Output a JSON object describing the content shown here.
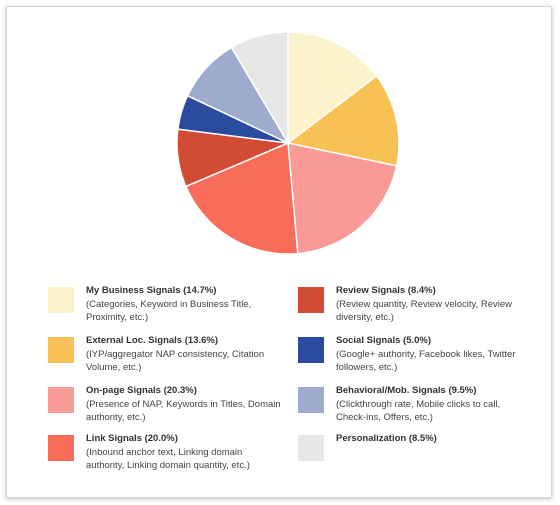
{
  "chart_data": {
    "type": "pie",
    "title": "",
    "slices": [
      {
        "name": "My Business Signals",
        "value": 14.7,
        "color": "#fcf2cc",
        "label": "My Business Signals (14.7%)",
        "desc": "(Categories, Keyword in Business Title, Proximity, etc.)"
      },
      {
        "name": "External Loc. Signals",
        "value": 13.6,
        "color": "#f8c153",
        "label": "External Loc. Signals (13.6%)",
        "desc": "(IYP/aggregator NAP consistency, Citation Volume, etc.)"
      },
      {
        "name": "On-page Signals",
        "value": 20.3,
        "color": "#f99a97",
        "label": "On-page Signals (20.3%)",
        "desc": "(Presence of NAP, Keywords in Titles, Domain authority, etc.)"
      },
      {
        "name": "Link Signals",
        "value": 20.0,
        "color": "#f86c59",
        "label": "Link Signals (20.0%)",
        "desc": "(Inbound anchor text, Linking domain authority, Linking domain quantity, etc.)"
      },
      {
        "name": "Review Signals",
        "value": 8.4,
        "color": "#d24b34",
        "label": "Review Signals (8.4%)",
        "desc": "(Review quantity, Review velocity, Review diversity, etc.)"
      },
      {
        "name": "Social Signals",
        "value": 5.0,
        "color": "#2b4b9e",
        "label": "Social Signals (5.0%)",
        "desc": "(Google+ authority, Facebook likes, Twitter followers, etc.)"
      },
      {
        "name": "Behavioral/Mob. Signals",
        "value": 9.5,
        "color": "#9dabcc",
        "label": "Behavioral/Mob. Signals (9.5%)",
        "desc": "(Clickthrough rate, Mobile clicks to call, Check-ins, Offers, etc.)"
      },
      {
        "name": "Personalization",
        "value": 8.5,
        "color": "#e8e7e7",
        "label": "Personalization (8.5%)",
        "desc": ""
      }
    ]
  }
}
